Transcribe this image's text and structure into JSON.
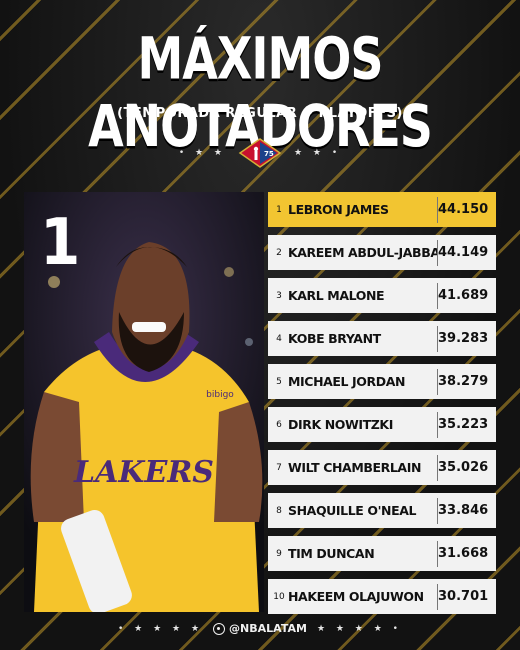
{
  "header": {
    "title": "MÁXIMOS ANOTADORES",
    "subtitle": "(TEMPORADA REGULAR + PLAYOFFS)",
    "stars": "• ★ ★",
    "stars_right": "★ ★ •"
  },
  "logo": {
    "icon": "nba-75-logo-icon"
  },
  "featured": {
    "rank": "1",
    "jersey_text": "LAKERS",
    "sponsor": "bibigo"
  },
  "leaders": [
    {
      "rank": "1",
      "name": "LEBRON JAMES",
      "points": "44.150"
    },
    {
      "rank": "2",
      "name": "KAREEM ABDUL-JABBAR",
      "points": "44.149"
    },
    {
      "rank": "3",
      "name": "KARL MALONE",
      "points": "41.689"
    },
    {
      "rank": "4",
      "name": "KOBE BRYANT",
      "points": "39.283"
    },
    {
      "rank": "5",
      "name": "MICHAEL JORDAN",
      "points": "38.279"
    },
    {
      "rank": "6",
      "name": "DIRK NOWITZKI",
      "points": "35.223"
    },
    {
      "rank": "7",
      "name": "WILT CHAMBERLAIN",
      "points": "35.026"
    },
    {
      "rank": "8",
      "name": "SHAQUILLE O'NEAL",
      "points": "33.846"
    },
    {
      "rank": "9",
      "name": "TIM DUNCAN",
      "points": "31.668"
    },
    {
      "rank": "10",
      "name": "HAKEEM OLAJUWON",
      "points": "30.701"
    }
  ],
  "footer": {
    "stars_left": "• ★ ★ ★ ★",
    "handle": "@NBALATAM",
    "stars_right": "★ ★ ★ ★ •"
  },
  "colors": {
    "accent_gold": "#f2c531",
    "row_bg": "#f2f2f2",
    "background": "#141414",
    "jersey_gold": "#f5c42c",
    "jersey_purple": "#4a2a7a"
  }
}
